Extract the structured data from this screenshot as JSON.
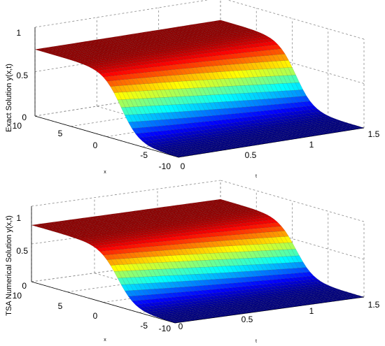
{
  "chart_data": [
    {
      "type": "surface",
      "zlabel": "Exact Solution y(x,t)",
      "xlabel": "x",
      "ylabel": "t",
      "x_ticks": [
        "10",
        "5",
        "0",
        "-5",
        "-10"
      ],
      "t_ticks": [
        "0",
        "0.5",
        "1",
        "1.5"
      ],
      "z_ticks": [
        "1",
        "0.5",
        "0"
      ],
      "xlim": [
        -10,
        10
      ],
      "tlim": [
        0,
        1.5
      ],
      "zlim": [
        0,
        1
      ],
      "grid": true,
      "colormap": "jet",
      "surface": {
        "high_level": 0.75,
        "low_level": 0.0,
        "transition_x": -2,
        "steepness": 0.8,
        "speed": 1.0
      }
    },
    {
      "type": "surface",
      "zlabel": "TSA Numerical Solution y(x,t)",
      "xlabel": "x",
      "ylabel": "t",
      "x_ticks": [
        "10",
        "5",
        "0",
        "-5",
        "-10"
      ],
      "t_ticks": [
        "0",
        "0.5",
        "1",
        "1.5"
      ],
      "z_ticks": [
        "1",
        "0.5",
        "0"
      ],
      "xlim": [
        -10,
        10
      ],
      "tlim": [
        0,
        1.5
      ],
      "zlim": [
        0,
        1
      ],
      "grid": true,
      "colormap": "jet",
      "surface": {
        "high_level": 0.75,
        "low_level": 0.0,
        "transition_x": -2,
        "steepness": 0.8,
        "speed": 1.0
      }
    }
  ]
}
